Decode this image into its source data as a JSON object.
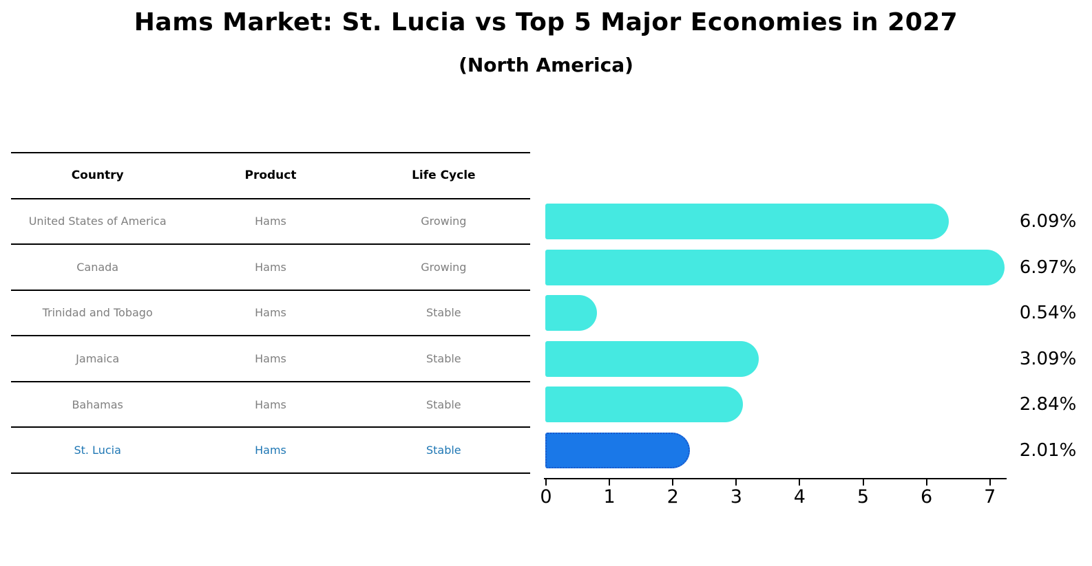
{
  "title": "Hams Market: St. Lucia vs Top 5 Major Economies in 2027",
  "subtitle": "(North America)",
  "table": {
    "columns": [
      "Country",
      "Product",
      "Life Cycle"
    ],
    "rows": [
      {
        "country": "United States of America",
        "product": "Hams",
        "life_cycle": "Growing",
        "highlight": false
      },
      {
        "country": "Canada",
        "product": "Hams",
        "life_cycle": "Growing",
        "highlight": false
      },
      {
        "country": "Trinidad and Tobago",
        "product": "Hams",
        "life_cycle": "Stable",
        "highlight": false
      },
      {
        "country": "Jamaica",
        "product": "Hams",
        "life_cycle": "Stable",
        "highlight": false
      },
      {
        "country": "Bahamas",
        "product": "Hams",
        "life_cycle": "Stable",
        "highlight": false
      },
      {
        "country": "St. Lucia",
        "product": "Hams",
        "life_cycle": "Stable",
        "highlight": true
      }
    ]
  },
  "chart_data": {
    "type": "bar",
    "orientation": "horizontal",
    "title": "Hams Market: St. Lucia vs Top 5 Major Economies in 2027",
    "subtitle": "(North America)",
    "categories": [
      "United States of America",
      "Canada",
      "Trinidad and Tobago",
      "Jamaica",
      "Bahamas",
      "St. Lucia"
    ],
    "values": [
      6.09,
      6.97,
      0.54,
      3.09,
      2.84,
      2.01
    ],
    "value_labels": [
      "6.09%",
      "6.97%",
      "0.54%",
      "3.09%",
      "2.84%",
      "2.01%"
    ],
    "xlabel": "",
    "ylabel": "",
    "xlim": [
      0,
      7.3
    ],
    "x_ticks": [
      "0",
      "1",
      "2",
      "3",
      "4",
      "5",
      "6",
      "7"
    ],
    "grid": false,
    "legend": "none",
    "bar_color": "#45E9E1",
    "highlight_index": 5,
    "highlight_fill": "#1A78E8",
    "highlight_border": "#1956C8"
  },
  "colors": {
    "background": "#FFFFFF",
    "muted_text": "#7F7F7F",
    "highlight_text": "#1F77B4",
    "axis": "#000000"
  }
}
